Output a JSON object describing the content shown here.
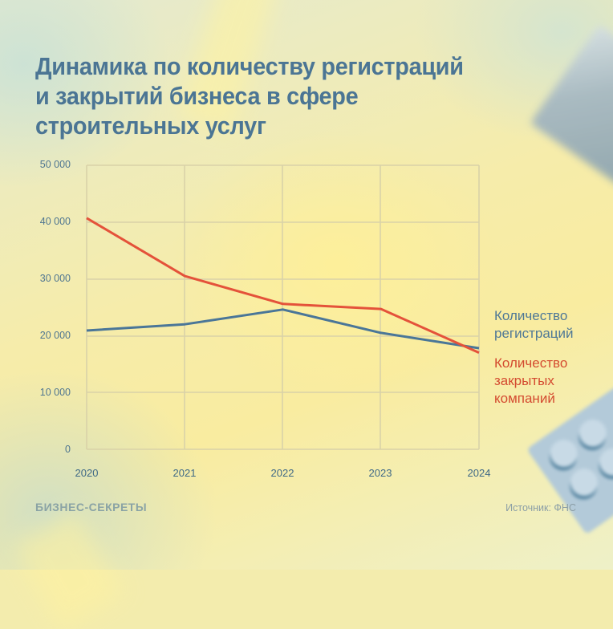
{
  "title": "Динамика по количеству регистраций и закрытий бизнеса в сфере строительных услуг",
  "title_lines": [
    "Динамика по количеству регистраций",
    "и закрытий бизнеса в сфере",
    "строительных услуг"
  ],
  "legend": {
    "registrations": "Количество регистраций",
    "closures": "Количество закрытых компаний"
  },
  "y_ticks": [
    "50 000",
    "40 000",
    "30 000",
    "20 000",
    "10 000",
    "0"
  ],
  "x_ticks": [
    "2020",
    "2021",
    "2022",
    "2023",
    "2024"
  ],
  "footer": {
    "brand": "БИЗНЕС-СЕКРЕТЫ",
    "source": "Источник: ФНС"
  },
  "colors": {
    "registrations": "#4a7698",
    "closures": "#e4523a",
    "title": "#4b7594",
    "grid": "#dcd4a8"
  },
  "chart_data": {
    "type": "line",
    "title": "Динамика по количеству регистраций и закрытий бизнеса в сфере строительных услуг",
    "xlabel": "",
    "ylabel": "",
    "x": [
      "2020",
      "2021",
      "2022",
      "2023",
      "2024"
    ],
    "series": [
      {
        "name": "Количество регистраций",
        "color": "#4a7698",
        "values": [
          20900,
          22000,
          24600,
          20500,
          17800
        ]
      },
      {
        "name": "Количество закрытых компаний",
        "color": "#e4523a",
        "values": [
          40700,
          30500,
          25600,
          24700,
          17000
        ]
      }
    ],
    "ylim": [
      0,
      50000
    ],
    "yticks": [
      0,
      10000,
      20000,
      30000,
      40000,
      50000
    ],
    "grid": true,
    "legend_position": "right",
    "source": "Источник: ФНС"
  }
}
